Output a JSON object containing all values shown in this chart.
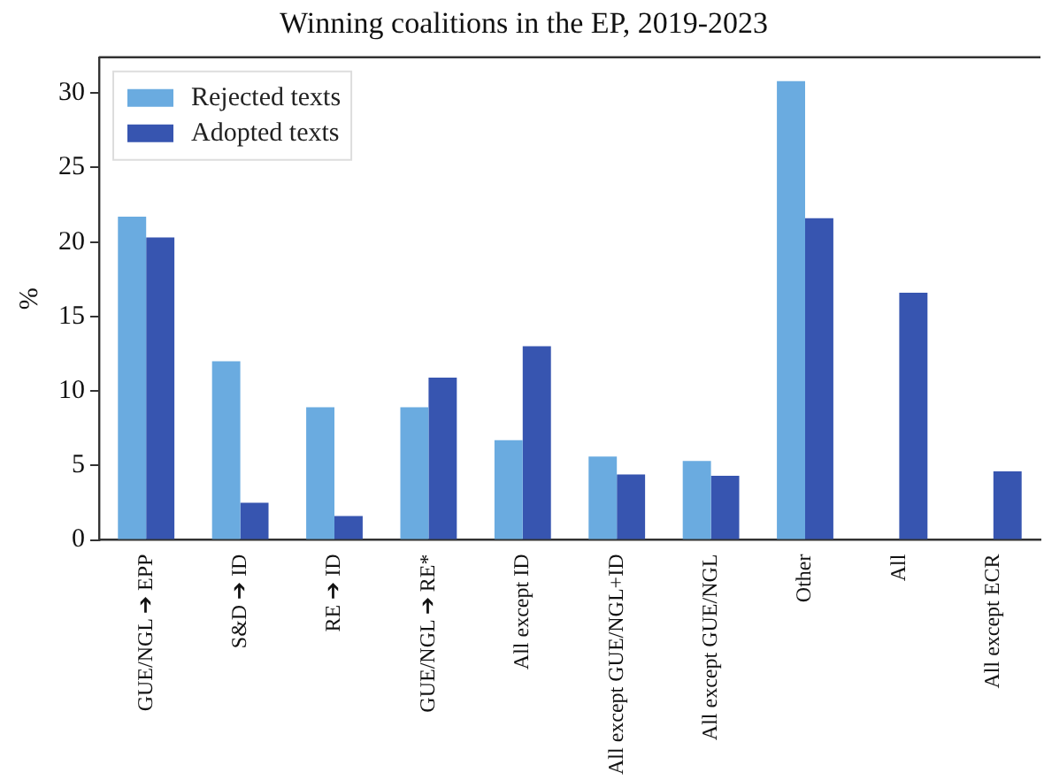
{
  "chart_data": {
    "type": "bar",
    "title": "Winning coalitions in the EP, 2019-2023",
    "ylabel": "%",
    "categories": [
      "GUE/NGL ➔ EPP",
      "S&D ➔ ID",
      "RE ➔ ID",
      "GUE/NGL ➔ RE*",
      "All except ID",
      "All except GUE/NGL+ID",
      "All except GUE/NGL",
      "Other",
      "All",
      "All except ECR"
    ],
    "series": [
      {
        "name": "Rejected texts",
        "color": "#6aabe0",
        "values": [
          21.7,
          12.0,
          8.9,
          8.9,
          6.7,
          5.6,
          5.3,
          30.8,
          null,
          null
        ]
      },
      {
        "name": "Adopted texts",
        "color": "#3755b0",
        "values": [
          20.3,
          2.5,
          1.6,
          10.9,
          13.0,
          4.4,
          4.3,
          21.6,
          16.6,
          4.6
        ]
      }
    ],
    "ylim": [
      0,
      32.4
    ],
    "yticks": [
      0,
      5,
      10,
      15,
      20,
      25,
      30
    ],
    "grid": false,
    "legend": "top left"
  }
}
